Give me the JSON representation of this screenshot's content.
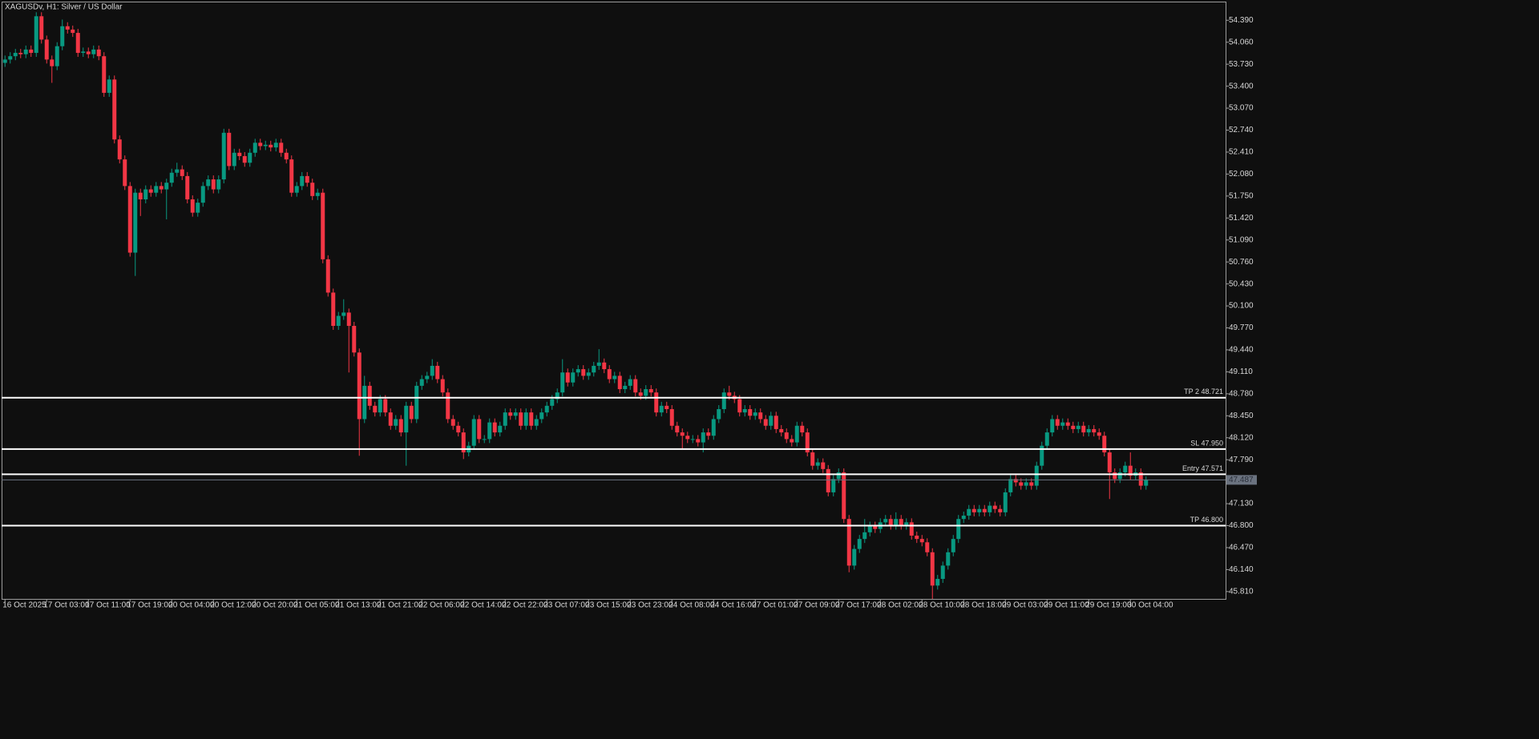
{
  "chart_data": {
    "type": "candlestick",
    "title": "XAGUSDv, H1:  Silver / US Dollar",
    "up_color": "#089981",
    "down_color": "#f23645",
    "ylim": [
      45.7,
      54.67
    ],
    "yticks": [
      {
        "value": 54.39,
        "label": "54.390"
      },
      {
        "value": 54.06,
        "label": "54.060"
      },
      {
        "value": 53.73,
        "label": "53.730"
      },
      {
        "value": 53.4,
        "label": "53.400"
      },
      {
        "value": 53.07,
        "label": "53.070"
      },
      {
        "value": 52.74,
        "label": "52.740"
      },
      {
        "value": 52.41,
        "label": "52.410"
      },
      {
        "value": 52.08,
        "label": "52.080"
      },
      {
        "value": 51.75,
        "label": "51.750"
      },
      {
        "value": 51.42,
        "label": "51.420"
      },
      {
        "value": 51.09,
        "label": "51.090"
      },
      {
        "value": 50.76,
        "label": "50.760"
      },
      {
        "value": 50.43,
        "label": "50.430"
      },
      {
        "value": 50.1,
        "label": "50.100"
      },
      {
        "value": 49.77,
        "label": "49.770"
      },
      {
        "value": 49.44,
        "label": "49.440"
      },
      {
        "value": 49.11,
        "label": "49.110"
      },
      {
        "value": 48.78,
        "label": "48.780"
      },
      {
        "value": 48.45,
        "label": "48.450"
      },
      {
        "value": 48.12,
        "label": "48.120"
      },
      {
        "value": 47.79,
        "label": "47.790"
      },
      {
        "value": 47.46,
        "label": "47.460"
      },
      {
        "value": 47.13,
        "label": "47.130"
      },
      {
        "value": 46.8,
        "label": "46.800"
      },
      {
        "value": 46.47,
        "label": "46.470"
      },
      {
        "value": 46.14,
        "label": "46.140"
      },
      {
        "value": 45.81,
        "label": "45.810"
      }
    ],
    "xticks": [
      {
        "value": 0,
        "label": "16 Oct 2025"
      },
      {
        "value": 8,
        "label": "17 Oct 03:00"
      },
      {
        "value": 16,
        "label": "17 Oct 11:00"
      },
      {
        "value": 24,
        "label": "17 Oct 19:00"
      },
      {
        "value": 32,
        "label": "20 Oct 04:00"
      },
      {
        "value": 40,
        "label": "20 Oct 12:00"
      },
      {
        "value": 48,
        "label": "20 Oct 20:00"
      },
      {
        "value": 56,
        "label": "21 Oct 05:00"
      },
      {
        "value": 64,
        "label": "21 Oct 13:00"
      },
      {
        "value": 72,
        "label": "21 Oct 21:00"
      },
      {
        "value": 80,
        "label": "22 Oct 06:00"
      },
      {
        "value": 88,
        "label": "22 Oct 14:00"
      },
      {
        "value": 96,
        "label": "22 Oct 22:00"
      },
      {
        "value": 104,
        "label": "23 Oct 07:00"
      },
      {
        "value": 112,
        "label": "23 Oct 15:00"
      },
      {
        "value": 120,
        "label": "23 Oct 23:00"
      },
      {
        "value": 128,
        "label": "24 Oct 08:00"
      },
      {
        "value": 136,
        "label": "24 Oct 16:00"
      },
      {
        "value": 144,
        "label": "27 Oct 01:00"
      },
      {
        "value": 152,
        "label": "27 Oct 09:00"
      },
      {
        "value": 160,
        "label": "27 Oct 17:00"
      },
      {
        "value": 168,
        "label": "28 Oct 02:00"
      },
      {
        "value": 176,
        "label": "28 Oct 10:00"
      },
      {
        "value": 184,
        "label": "28 Oct 18:00"
      },
      {
        "value": 192,
        "label": "29 Oct 03:00"
      },
      {
        "value": 200,
        "label": "29 Oct 11:00"
      },
      {
        "value": 208,
        "label": "29 Oct 19:00"
      },
      {
        "value": 216,
        "label": "30 Oct 04:00"
      }
    ],
    "levels": [
      {
        "label": "TP 2 48.721",
        "value": 48.721
      },
      {
        "label": "SL 47.950",
        "value": 47.95
      },
      {
        "label": "Entry 47.571",
        "value": 47.571
      },
      {
        "label": "TP 46.800",
        "value": 46.8
      }
    ],
    "last_price": 47.487,
    "open": [
      53.75,
      53.8,
      53.85,
      53.9,
      53.88,
      53.95,
      53.9,
      54.45,
      54.1,
      53.8,
      53.7,
      54.0,
      54.3,
      54.25,
      54.2,
      53.9,
      53.92,
      53.88,
      53.95,
      53.85,
      53.3,
      53.5,
      52.6,
      52.3,
      51.9,
      50.9,
      51.8,
      51.7,
      51.85,
      51.8,
      51.9,
      51.85,
      51.95,
      52.1,
      52.15,
      52.05,
      51.7,
      51.5,
      51.65,
      51.9,
      52.0,
      51.85,
      52.0,
      52.7,
      52.2,
      52.4,
      52.35,
      52.25,
      52.4,
      52.55,
      52.5,
      52.52,
      52.48,
      52.55,
      52.4,
      52.3,
      51.8,
      51.9,
      52.05,
      51.95,
      51.75,
      51.8,
      50.8,
      50.3,
      49.8,
      49.95,
      50.0,
      49.8,
      49.4,
      48.4,
      48.9,
      48.6,
      48.5,
      48.7,
      48.5,
      48.3,
      48.4,
      48.2,
      48.6,
      48.4,
      48.9,
      49.0,
      49.05,
      49.2,
      49.0,
      48.8,
      48.4,
      48.3,
      48.2,
      47.9,
      48.0,
      48.4,
      48.1,
      48.1,
      48.35,
      48.2,
      48.3,
      48.5,
      48.45,
      48.5,
      48.3,
      48.5,
      48.3,
      48.4,
      48.5,
      48.6,
      48.7,
      48.8,
      49.1,
      48.95,
      49.1,
      49.15,
      49.05,
      49.1,
      49.2,
      49.25,
      49.15,
      49.0,
      49.05,
      48.85,
      48.9,
      49.0,
      48.8,
      48.75,
      48.85,
      48.8,
      48.5,
      48.6,
      48.55,
      48.3,
      48.2,
      48.15,
      48.1,
      48.1,
      48.05,
      48.2,
      48.15,
      48.4,
      48.55,
      48.8,
      48.75,
      48.7,
      48.5,
      48.55,
      48.45,
      48.5,
      48.4,
      48.3,
      48.45,
      48.25,
      48.2,
      48.1,
      48.05,
      48.3,
      48.2,
      47.9,
      47.7,
      47.75,
      47.65,
      47.3,
      47.5,
      47.6,
      46.9,
      46.2,
      46.45,
      46.6,
      46.7,
      46.8,
      46.75,
      46.85,
      46.9,
      46.8,
      46.9,
      46.8,
      46.85,
      46.65,
      46.6,
      46.55,
      46.4,
      45.9,
      46.0,
      46.2,
      46.4,
      46.6,
      46.9,
      46.95,
      47.05,
      47.0,
      47.05,
      47.0,
      47.1,
      47.05,
      47.0,
      47.3,
      47.5,
      47.45,
      47.4,
      47.45,
      47.4,
      47.7,
      48.0,
      48.2,
      48.4,
      48.3,
      48.35,
      48.3,
      48.25,
      48.3,
      48.2,
      48.25,
      48.2,
      48.15,
      47.9,
      47.6,
      47.5,
      47.6,
      47.7,
      47.55,
      47.6,
      47.4
    ],
    "high": [
      53.86,
      53.91,
      53.96,
      53.96,
      54.01,
      54.01,
      54.51,
      54.51,
      54.16,
      53.86,
      54.06,
      54.4,
      54.36,
      54.31,
      54.26,
      53.98,
      53.98,
      54.01,
      54.01,
      53.91,
      53.56,
      53.56,
      52.66,
      52.36,
      51.96,
      51.86,
      51.86,
      51.91,
      51.91,
      51.96,
      51.96,
      52.01,
      52.16,
      52.25,
      52.21,
      52.11,
      51.76,
      51.71,
      51.96,
      52.06,
      52.06,
      52.06,
      52.76,
      52.76,
      52.46,
      52.46,
      52.41,
      52.46,
      52.61,
      52.61,
      52.58,
      52.58,
      52.61,
      52.61,
      52.46,
      52.36,
      51.96,
      52.11,
      52.11,
      52.01,
      51.86,
      51.86,
      50.86,
      50.36,
      50.01,
      50.2,
      50.06,
      49.86,
      49.46,
      49.05,
      48.96,
      48.66,
      48.76,
      48.76,
      48.56,
      48.46,
      48.46,
      48.66,
      48.66,
      48.96,
      49.06,
      49.11,
      49.3,
      49.26,
      49.06,
      48.86,
      48.46,
      48.36,
      48.26,
      48.06,
      48.46,
      48.46,
      48.16,
      48.41,
      48.41,
      48.36,
      48.56,
      48.56,
      48.56,
      48.56,
      48.56,
      48.56,
      48.46,
      48.56,
      48.66,
      48.76,
      48.86,
      49.3,
      49.16,
      49.16,
      49.21,
      49.21,
      49.16,
      49.26,
      49.45,
      49.31,
      49.21,
      49.11,
      49.11,
      48.96,
      49.06,
      49.06,
      48.86,
      48.91,
      48.91,
      48.86,
      48.66,
      48.66,
      48.61,
      48.36,
      48.26,
      48.21,
      48.16,
      48.16,
      48.26,
      48.26,
      48.46,
      48.61,
      48.86,
      48.9,
      48.81,
      48.76,
      48.61,
      48.61,
      48.56,
      48.56,
      48.46,
      48.51,
      48.51,
      48.31,
      48.26,
      48.16,
      48.36,
      48.36,
      48.26,
      47.96,
      47.81,
      47.81,
      47.71,
      47.56,
      47.66,
      47.66,
      46.96,
      46.51,
      46.66,
      46.9,
      46.86,
      46.86,
      46.91,
      46.96,
      46.96,
      47.0,
      46.96,
      46.91,
      46.91,
      46.71,
      46.66,
      46.61,
      46.46,
      46.06,
      46.26,
      46.46,
      46.66,
      46.96,
      47.01,
      47.11,
      47.11,
      47.11,
      47.11,
      47.16,
      47.16,
      47.11,
      47.36,
      47.56,
      47.56,
      47.51,
      47.51,
      47.51,
      47.76,
      48.06,
      48.26,
      48.46,
      48.46,
      48.41,
      48.41,
      48.36,
      48.36,
      48.36,
      48.31,
      48.31,
      48.26,
      48.21,
      47.96,
      47.66,
      47.66,
      47.76,
      47.9,
      47.66,
      47.66,
      47.54
    ],
    "low": [
      53.69,
      53.74,
      53.79,
      53.82,
      53.82,
      53.84,
      53.84,
      54.04,
      53.74,
      53.45,
      53.64,
      53.94,
      54.19,
      54.14,
      53.84,
      53.84,
      53.82,
      53.82,
      53.79,
      53.24,
      53.24,
      52.54,
      52.24,
      51.84,
      50.84,
      50.55,
      51.45,
      51.64,
      51.74,
      51.74,
      51.79,
      51.4,
      51.89,
      52.04,
      51.99,
      51.64,
      51.44,
      51.44,
      51.59,
      51.84,
      51.79,
      51.79,
      51.94,
      52.14,
      52.14,
      52.29,
      52.19,
      52.19,
      52.34,
      52.44,
      52.44,
      52.42,
      52.42,
      52.34,
      52.24,
      51.74,
      51.74,
      51.84,
      51.89,
      51.69,
      51.69,
      50.74,
      50.24,
      49.74,
      49.74,
      49.89,
      49.1,
      49.34,
      47.85,
      48.34,
      48.54,
      48.44,
      48.44,
      48.44,
      48.24,
      48.24,
      48.14,
      47.7,
      48.34,
      48.34,
      48.84,
      48.94,
      48.99,
      48.94,
      48.74,
      48.34,
      48.24,
      48.14,
      47.8,
      47.84,
      47.94,
      48.04,
      48.04,
      48.04,
      48.14,
      48.14,
      48.24,
      48.39,
      48.39,
      48.24,
      48.24,
      48.24,
      48.24,
      48.34,
      48.44,
      48.54,
      48.64,
      48.74,
      48.89,
      48.89,
      49.04,
      48.99,
      48.99,
      49.04,
      49.14,
      49.09,
      48.94,
      48.94,
      48.79,
      48.79,
      48.84,
      48.74,
      48.69,
      48.69,
      48.74,
      48.44,
      48.44,
      48.49,
      48.24,
      48.14,
      47.95,
      48.04,
      48.04,
      47.99,
      47.9,
      48.09,
      48.09,
      48.34,
      48.49,
      48.69,
      48.64,
      48.44,
      48.44,
      48.39,
      48.39,
      48.34,
      48.24,
      48.24,
      48.19,
      48.14,
      48.04,
      47.99,
      47.99,
      48.14,
      47.84,
      47.64,
      47.64,
      47.59,
      47.24,
      47.24,
      47.44,
      46.84,
      46.1,
      46.14,
      46.39,
      46.54,
      46.64,
      46.69,
      46.69,
      46.79,
      46.74,
      46.74,
      46.74,
      46.74,
      46.59,
      46.54,
      46.49,
      46.34,
      45.7,
      45.84,
      45.94,
      46.14,
      46.34,
      46.54,
      46.84,
      46.89,
      46.94,
      46.94,
      46.94,
      46.94,
      46.99,
      46.94,
      46.94,
      47.24,
      47.39,
      47.34,
      47.34,
      47.34,
      47.34,
      47.64,
      47.94,
      48.14,
      48.24,
      48.24,
      48.24,
      48.19,
      48.19,
      48.14,
      48.14,
      48.14,
      48.09,
      47.84,
      47.2,
      47.44,
      47.44,
      47.54,
      47.49,
      47.49,
      47.34,
      47.34
    ],
    "close": [
      53.8,
      53.85,
      53.9,
      53.88,
      53.95,
      53.9,
      54.45,
      54.1,
      53.8,
      53.7,
      54.0,
      54.3,
      54.25,
      54.2,
      53.9,
      53.92,
      53.88,
      53.95,
      53.85,
      53.3,
      53.5,
      52.6,
      52.3,
      51.9,
      50.9,
      51.8,
      51.7,
      51.85,
      51.8,
      51.9,
      51.85,
      51.95,
      52.1,
      52.15,
      52.05,
      51.7,
      51.5,
      51.65,
      51.9,
      52.0,
      51.85,
      52.0,
      52.7,
      52.2,
      52.4,
      52.35,
      52.25,
      52.4,
      52.55,
      52.5,
      52.52,
      52.48,
      52.55,
      52.4,
      52.3,
      51.8,
      51.9,
      52.05,
      51.95,
      51.75,
      51.8,
      50.8,
      50.3,
      49.8,
      49.95,
      50.0,
      49.8,
      49.4,
      48.4,
      48.9,
      48.6,
      48.5,
      48.7,
      48.5,
      48.3,
      48.4,
      48.2,
      48.6,
      48.4,
      48.9,
      49.0,
      49.05,
      49.2,
      49.0,
      48.8,
      48.4,
      48.3,
      48.2,
      47.9,
      48.0,
      48.4,
      48.1,
      48.1,
      48.35,
      48.2,
      48.3,
      48.5,
      48.45,
      48.5,
      48.3,
      48.5,
      48.3,
      48.4,
      48.5,
      48.6,
      48.7,
      48.8,
      49.1,
      48.95,
      49.1,
      49.15,
      49.05,
      49.1,
      49.2,
      49.25,
      49.15,
      49.0,
      49.05,
      48.85,
      48.9,
      49.0,
      48.8,
      48.75,
      48.85,
      48.8,
      48.5,
      48.6,
      48.55,
      48.3,
      48.2,
      48.15,
      48.1,
      48.1,
      48.05,
      48.2,
      48.15,
      48.4,
      48.55,
      48.8,
      48.75,
      48.7,
      48.5,
      48.55,
      48.45,
      48.5,
      48.4,
      48.3,
      48.45,
      48.25,
      48.2,
      48.1,
      48.05,
      48.3,
      48.2,
      47.9,
      47.7,
      47.75,
      47.65,
      47.3,
      47.5,
      47.6,
      46.9,
      46.2,
      46.45,
      46.6,
      46.7,
      46.8,
      46.75,
      46.85,
      46.9,
      46.8,
      46.9,
      46.8,
      46.85,
      46.65,
      46.6,
      46.55,
      46.4,
      45.9,
      46.0,
      46.2,
      46.4,
      46.6,
      46.9,
      46.95,
      47.05,
      47.0,
      47.05,
      47.0,
      47.1,
      47.05,
      47.0,
      47.3,
      47.5,
      47.45,
      47.4,
      47.45,
      47.4,
      47.7,
      48.0,
      48.2,
      48.4,
      48.3,
      48.35,
      48.3,
      48.25,
      48.3,
      48.2,
      48.25,
      48.2,
      48.15,
      47.9,
      47.6,
      47.5,
      47.6,
      47.7,
      47.55,
      47.6,
      47.4,
      47.487
    ]
  }
}
